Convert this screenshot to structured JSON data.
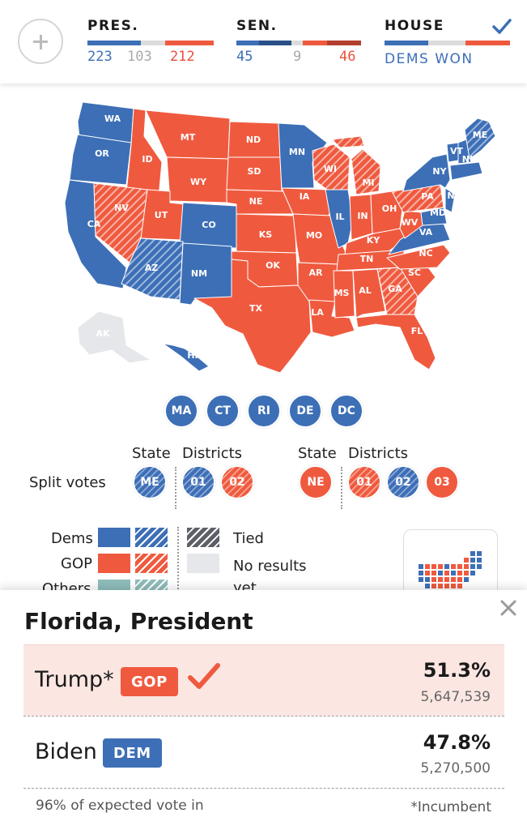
{
  "header": {
    "pres": {
      "label": "PRES.",
      "dem": "223",
      "undecided": "103",
      "gop": "212"
    },
    "sen": {
      "label": "SEN.",
      "dem": "45",
      "undecided": "9",
      "gop": "46"
    },
    "house": {
      "label": "HOUSE",
      "status": "DEMS WON"
    }
  },
  "colors": {
    "dem": "#3d6fb6",
    "gop": "#ef5a3f",
    "others": "#8fbdbb",
    "tied": "#5d6068",
    "no_results": "#e6e7ea"
  },
  "map": {
    "states": [
      "WA",
      "OR",
      "CA",
      "ID",
      "NV",
      "MT",
      "WY",
      "UT",
      "CO",
      "AZ",
      "NM",
      "ND",
      "SD",
      "NE",
      "KS",
      "OK",
      "TX",
      "MN",
      "IA",
      "MO",
      "AR",
      "LA",
      "WI",
      "IL",
      "MI",
      "IN",
      "OH",
      "KY",
      "TN",
      "MS",
      "AL",
      "GA",
      "FL",
      "SC",
      "NC",
      "VA",
      "WV",
      "PA",
      "NY",
      "VT",
      "NH",
      "ME",
      "MD",
      "NJ",
      "AK",
      "HI"
    ]
  },
  "small_states": [
    "MA",
    "CT",
    "RI",
    "DE",
    "DC"
  ],
  "split_votes": {
    "label": "Split votes",
    "state_heading": "State",
    "districts_heading": "Districts",
    "maine": {
      "state": "ME",
      "districts": [
        "01",
        "02"
      ]
    },
    "nebraska": {
      "state": "NE",
      "districts": [
        "01",
        "02",
        "03"
      ]
    }
  },
  "legend": {
    "dems": "Dems",
    "gop": "GOP",
    "others": "Others",
    "tied": "Tied",
    "no_results": "No results yet"
  },
  "results": {
    "title": "Florida, President",
    "candidates": [
      {
        "name": "Trump*",
        "party": "GOP",
        "pct": "51.3%",
        "votes": "5,647,539",
        "winner": true
      },
      {
        "name": "Biden",
        "party": "DEM",
        "pct": "47.8%",
        "votes": "5,270,500",
        "winner": false
      }
    ],
    "reporting": "96% of expected vote in",
    "incumbent_note": "*Incumbent"
  }
}
